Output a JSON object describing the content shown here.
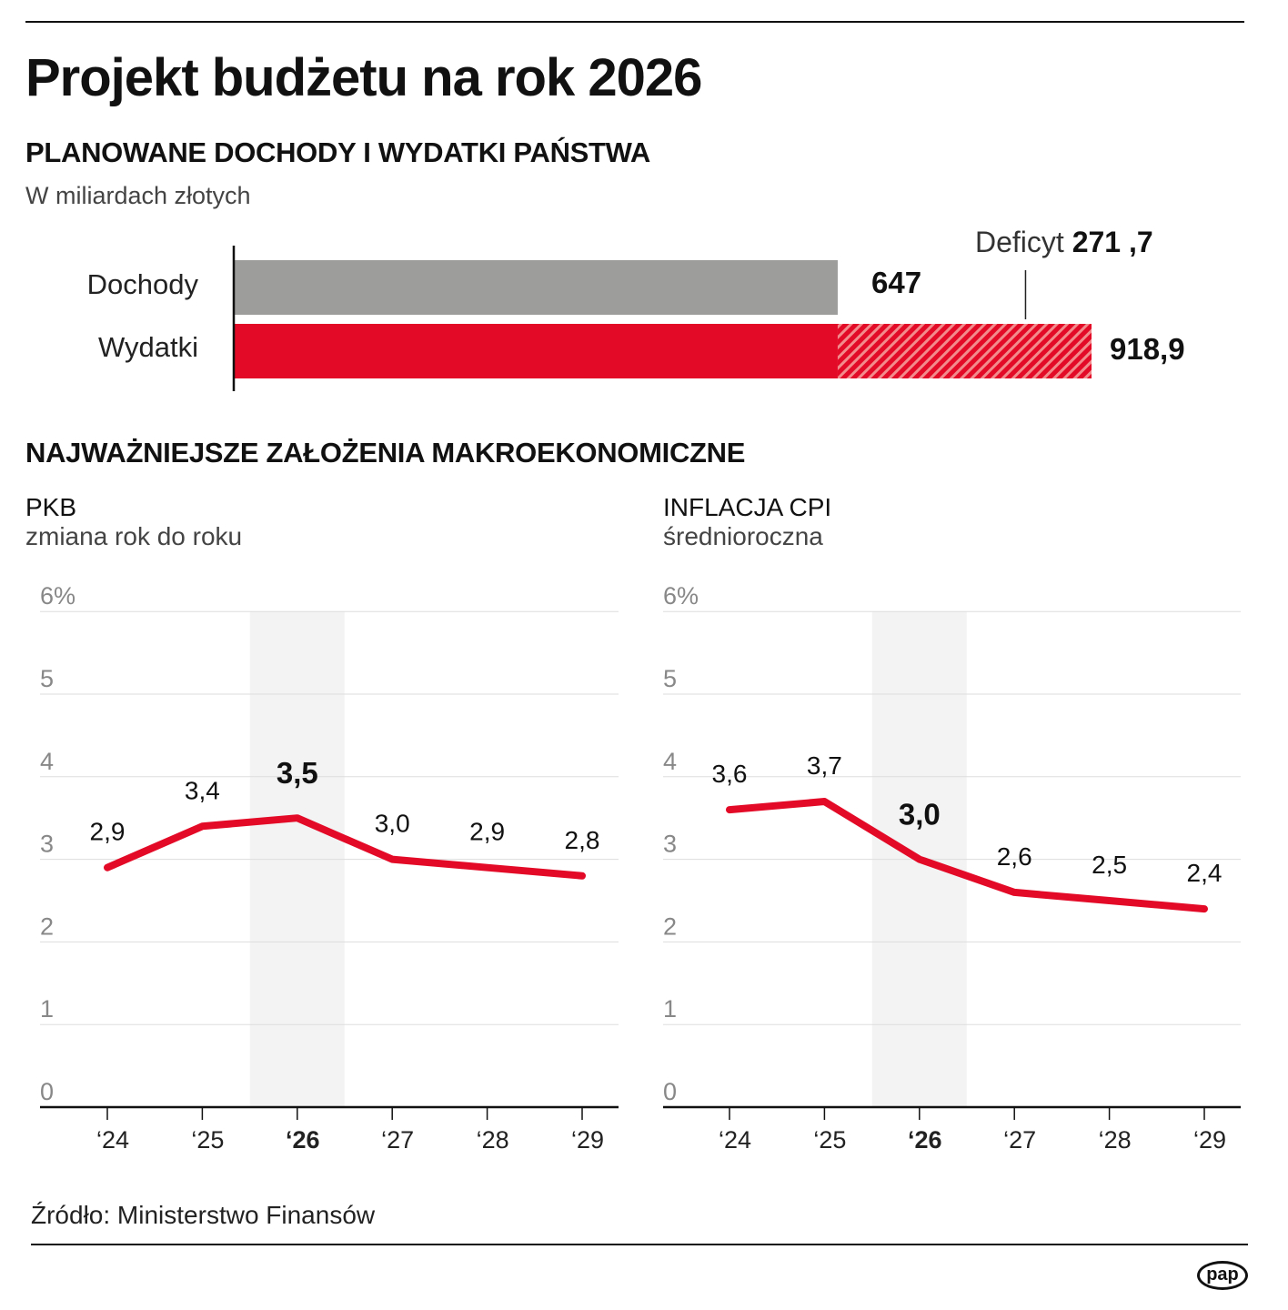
{
  "title": "Projekt budżetu na rok 2026",
  "section1": {
    "heading": "PLANOWANE DOCHODY I WYDATKI PAŃSTWA",
    "unit": "W miliardach złotych"
  },
  "chart_data": [
    {
      "type": "bar",
      "orientation": "horizontal",
      "categories": [
        "Dochody",
        "Wydatki"
      ],
      "values": [
        647,
        918.9
      ],
      "value_labels": [
        "647",
        "918,9"
      ],
      "deficit": {
        "label": "Deficyt",
        "value": 271.7,
        "value_label": "271 ,7"
      },
      "colors": {
        "Dochody": "#9d9d9c",
        "Wydatki": "#e30a27",
        "deficit_hatch": "#f28b8b"
      }
    },
    {
      "type": "line",
      "title": "PKB",
      "subtitle": "zmiana rok do roku",
      "categories": [
        "‘24",
        "‘25",
        "‘26",
        "‘27",
        "‘28",
        "‘29"
      ],
      "values": [
        2.9,
        3.4,
        3.5,
        3.0,
        2.9,
        2.8
      ],
      "value_labels": [
        "2,9",
        "3,4",
        "3,5",
        "3,0",
        "2,9",
        "2,8"
      ],
      "highlight_index": 2,
      "ylim": [
        0,
        6
      ],
      "yticks": [
        "0",
        "1",
        "2",
        "3",
        "4",
        "5",
        "6%"
      ],
      "grid": true,
      "color": "#e30a27"
    },
    {
      "type": "line",
      "title": "INFLACJA CPI",
      "subtitle": "średnioroczna",
      "categories": [
        "‘24",
        "‘25",
        "‘26",
        "‘27",
        "‘28",
        "‘29"
      ],
      "values": [
        3.6,
        3.7,
        3.0,
        2.6,
        2.5,
        2.4
      ],
      "value_labels": [
        "3,6",
        "3,7",
        "3,0",
        "2,6",
        "2,5",
        "2,4"
      ],
      "highlight_index": 2,
      "ylim": [
        0,
        6
      ],
      "yticks": [
        "0",
        "1",
        "2",
        "3",
        "4",
        "5",
        "6%"
      ],
      "grid": true,
      "color": "#e30a27"
    }
  ],
  "section2": {
    "heading": "NAJWAŻNIEJSZE ZAŁOŻENIA MAKROEKONOMICZNE"
  },
  "source": "Źródło: Ministerstwo Finansów",
  "logo": "pap"
}
